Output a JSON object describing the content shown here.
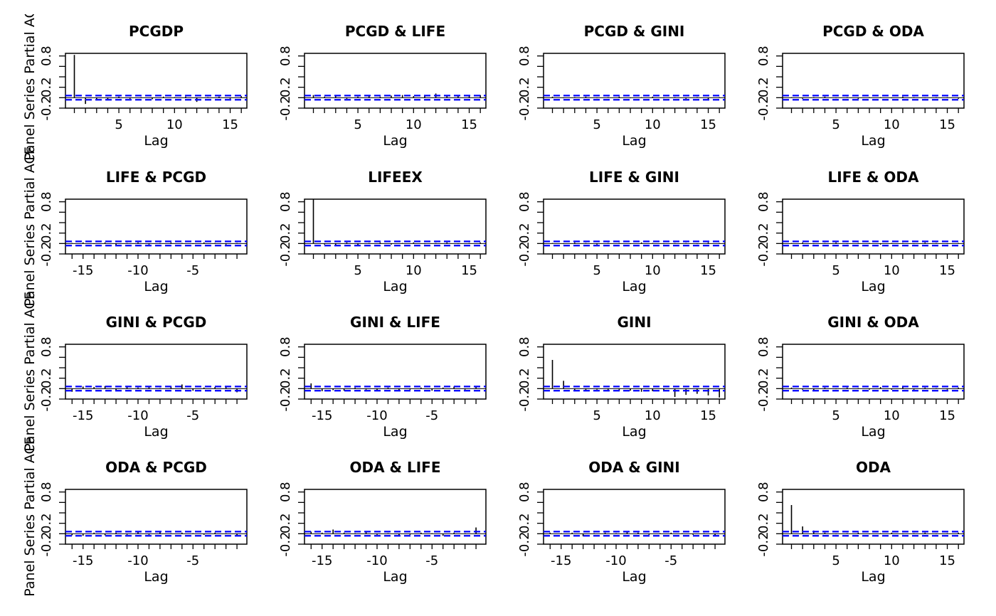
{
  "chart_data": {
    "type": "bar",
    "xlabel": "Lag",
    "ylabel": "Partial ACF",
    "ylabel_full": "Panel Series Partial ACF",
    "ylim": [
      -0.2,
      0.85
    ],
    "y_ticks": [
      "-0.2",
      "0.2",
      "0.8"
    ],
    "ci_level": 0.04,
    "colors": {
      "bar": "#000000",
      "ci": "#0000ff",
      "axes": "#000000"
    },
    "panels": [
      {
        "title": "PCGDP",
        "lag_dir": "pos",
        "x_ticks": [
          "5",
          "10",
          "15"
        ],
        "lags": [
          1,
          2,
          3,
          4,
          5,
          6,
          7,
          8,
          9,
          10,
          11,
          12,
          13,
          14,
          15,
          16
        ],
        "values": [
          0.82,
          -0.12,
          -0.03,
          -0.05,
          0.02,
          -0.02,
          0.01,
          -0.03,
          0.02,
          0.01,
          0.02,
          -0.08,
          0.01,
          0.02,
          -0.02,
          0.03
        ]
      },
      {
        "title": "PCGD & LIFE",
        "lag_dir": "pos",
        "x_ticks": [
          "5",
          "10",
          "15"
        ],
        "lags": [
          1,
          2,
          3,
          4,
          5,
          6,
          7,
          8,
          9,
          10,
          11,
          12,
          13,
          14,
          15,
          16
        ],
        "values": [
          0.05,
          0.02,
          0.03,
          -0.02,
          0.02,
          0.03,
          0.02,
          0.04,
          0.05,
          0.03,
          0.04,
          0.08,
          0.04,
          0.05,
          0.04,
          0.05
        ]
      },
      {
        "title": "PCGD & GINI",
        "lag_dir": "pos",
        "x_ticks": [
          "5",
          "10",
          "15"
        ],
        "lags": [
          1,
          2,
          3,
          4,
          5,
          6,
          7,
          8,
          9,
          10,
          11,
          12,
          13,
          14,
          15,
          16
        ],
        "values": [
          0.02,
          -0.01,
          0.01,
          0.02,
          -0.01,
          0.01,
          0.02,
          -0.01,
          0.01,
          0.02,
          -0.01,
          0.01,
          -0.02,
          0.01,
          -0.04,
          0.01
        ]
      },
      {
        "title": "PCGD & ODA",
        "lag_dir": "pos",
        "x_ticks": [
          "5",
          "10",
          "15"
        ],
        "lags": [
          1,
          2,
          3,
          4,
          5,
          6,
          7,
          8,
          9,
          10,
          11,
          12,
          13,
          14,
          15,
          16
        ],
        "values": [
          0.01,
          -0.02,
          0.01,
          0.02,
          -0.01,
          0.01,
          -0.02,
          0.01,
          0.01,
          -0.01,
          0.02,
          0.01,
          -0.01,
          0.01,
          0.01,
          -0.02
        ]
      },
      {
        "title": "LIFE & PCGD",
        "lag_dir": "neg",
        "x_ticks": [
          "-15",
          "-10",
          "-5"
        ],
        "lags": [
          -16,
          -15,
          -14,
          -13,
          -12,
          -11,
          -10,
          -9,
          -8,
          -7,
          -6,
          -5,
          -4,
          -3,
          -2,
          -1
        ],
        "values": [
          0.01,
          0.02,
          -0.01,
          0.02,
          -0.03,
          0.01,
          0.02,
          -0.02,
          0.01,
          0.02,
          0.01,
          -0.01,
          0.02,
          0.01,
          -0.02,
          0.01
        ]
      },
      {
        "title": "LIFEEX",
        "lag_dir": "pos",
        "x_ticks": [
          "5",
          "10",
          "15"
        ],
        "lags": [
          1,
          2,
          3,
          4,
          5,
          6,
          7,
          8,
          9,
          10,
          11,
          12,
          13,
          14,
          15,
          16
        ],
        "values": [
          0.85,
          -0.02,
          -0.04,
          0.02,
          -0.03,
          0.01,
          0.02,
          -0.02,
          0.01,
          0.02,
          -0.01,
          0.01,
          0.02,
          -0.01,
          0.01,
          0.02
        ]
      },
      {
        "title": "LIFE & GINI",
        "lag_dir": "pos",
        "x_ticks": [
          "5",
          "10",
          "15"
        ],
        "lags": [
          1,
          2,
          3,
          4,
          5,
          6,
          7,
          8,
          9,
          10,
          11,
          12,
          13,
          14,
          15,
          16
        ],
        "values": [
          0.01,
          -0.01,
          0.02,
          0.01,
          -0.02,
          0.01,
          0.01,
          -0.01,
          0.02,
          0.01,
          -0.01,
          0.01,
          0.01,
          -0.01,
          0.02,
          0.01
        ]
      },
      {
        "title": "LIFE & ODA",
        "lag_dir": "pos",
        "x_ticks": [
          "5",
          "10",
          "15"
        ],
        "lags": [
          1,
          2,
          3,
          4,
          5,
          6,
          7,
          8,
          9,
          10,
          11,
          12,
          13,
          14,
          15,
          16
        ],
        "values": [
          0.01,
          0.02,
          -0.01,
          0.01,
          0.02,
          -0.01,
          0.01,
          0.01,
          -0.02,
          0.01,
          0.01,
          -0.01,
          0.02,
          0.01,
          -0.01,
          0.01
        ]
      },
      {
        "title": "GINI & PCGD",
        "lag_dir": "neg",
        "x_ticks": [
          "-15",
          "-10",
          "-5"
        ],
        "lags": [
          -16,
          -15,
          -14,
          -13,
          -12,
          -11,
          -10,
          -9,
          -8,
          -7,
          -6,
          -5,
          -4,
          -3,
          -2,
          -1
        ],
        "values": [
          -0.06,
          0.04,
          0.03,
          0.05,
          -0.03,
          0.04,
          0.02,
          0.03,
          0.01,
          0.05,
          0.08,
          -0.04,
          0.02,
          0.03,
          0.04,
          -0.07
        ]
      },
      {
        "title": "GINI & LIFE",
        "lag_dir": "neg",
        "x_ticks": [
          "-15",
          "-10",
          "-5"
        ],
        "lags": [
          -16,
          -15,
          -14,
          -13,
          -12,
          -11,
          -10,
          -9,
          -8,
          -7,
          -6,
          -5,
          -4,
          -3,
          -2,
          -1
        ],
        "values": [
          0.1,
          -0.05,
          -0.03,
          -0.04,
          0.02,
          -0.02,
          -0.03,
          0.02,
          -0.05,
          -0.02,
          0.02,
          -0.04,
          0.02,
          0.04,
          -0.02,
          0.03
        ]
      },
      {
        "title": "GINI",
        "lag_dir": "pos",
        "x_ticks": [
          "5",
          "10",
          "15"
        ],
        "lags": [
          1,
          2,
          3,
          4,
          5,
          6,
          7,
          8,
          9,
          10,
          11,
          12,
          13,
          14,
          15,
          16
        ],
        "values": [
          0.55,
          0.15,
          -0.03,
          -0.03,
          -0.02,
          -0.04,
          -0.05,
          -0.04,
          -0.06,
          -0.05,
          -0.05,
          -0.16,
          -0.12,
          -0.1,
          -0.13,
          -0.17
        ]
      },
      {
        "title": "GINI & ODA",
        "lag_dir": "pos",
        "x_ticks": [
          "5",
          "10",
          "15"
        ],
        "lags": [
          1,
          2,
          3,
          4,
          5,
          6,
          7,
          8,
          9,
          10,
          11,
          12,
          13,
          14,
          15,
          16
        ],
        "values": [
          0.02,
          -0.02,
          -0.03,
          0.02,
          -0.01,
          0.02,
          0.01,
          -0.02,
          0.03,
          -0.02,
          0.05,
          -0.02,
          0.02,
          0.01,
          -0.02,
          0.02
        ]
      },
      {
        "title": "ODA & PCGD",
        "lag_dir": "neg",
        "x_ticks": [
          "-15",
          "-10",
          "-5"
        ],
        "lags": [
          -16,
          -15,
          -14,
          -13,
          -12,
          -11,
          -10,
          -9,
          -8,
          -7,
          -6,
          -5,
          -4,
          -3,
          -2,
          -1
        ],
        "values": [
          -0.03,
          -0.04,
          0.02,
          -0.03,
          0.02,
          -0.02,
          0.04,
          -0.02,
          0.04,
          0.01,
          0.02,
          0.01,
          -0.02,
          0.02,
          0.01,
          -0.05
        ]
      },
      {
        "title": "ODA & LIFE",
        "lag_dir": "neg",
        "x_ticks": [
          "-15",
          "-10",
          "-5"
        ],
        "lags": [
          -16,
          -15,
          -14,
          -13,
          -12,
          -11,
          -10,
          -9,
          -8,
          -7,
          -6,
          -5,
          -4,
          -3,
          -2,
          -1
        ],
        "values": [
          0.04,
          0.02,
          0.08,
          0.02,
          0.01,
          0.03,
          -0.02,
          0.01,
          -0.03,
          -0.02,
          0.02,
          0.01,
          -0.04,
          0.02,
          0.01,
          0.12
        ]
      },
      {
        "title": "ODA & GINI",
        "lag_dir": "neg",
        "x_ticks": [
          "-15",
          "-10",
          "-5"
        ],
        "lags": [
          -16,
          -15,
          -14,
          -13,
          -12,
          -11,
          -10,
          -9,
          -8,
          -7,
          -6,
          -5,
          -4,
          -3,
          -2,
          -1
        ],
        "values": [
          0.02,
          0.01,
          0.02,
          -0.05,
          0.01,
          0.02,
          0.01,
          0.04,
          0.02,
          -0.02,
          0.01,
          0.02,
          0.01,
          -0.02,
          0.01,
          -0.03
        ]
      },
      {
        "title": "ODA",
        "lag_dir": "pos",
        "x_ticks": [
          "5",
          "10",
          "15"
        ],
        "lags": [
          1,
          2,
          3,
          4,
          5,
          6,
          7,
          8,
          9,
          10,
          11,
          12,
          13,
          14,
          15,
          16
        ],
        "values": [
          0.55,
          0.14,
          0.06,
          0.02,
          -0.01,
          0.01,
          0.02,
          -0.01,
          0.01,
          0.02,
          -0.01,
          0.01,
          0.02,
          -0.01,
          0.01,
          0.02
        ]
      }
    ]
  }
}
